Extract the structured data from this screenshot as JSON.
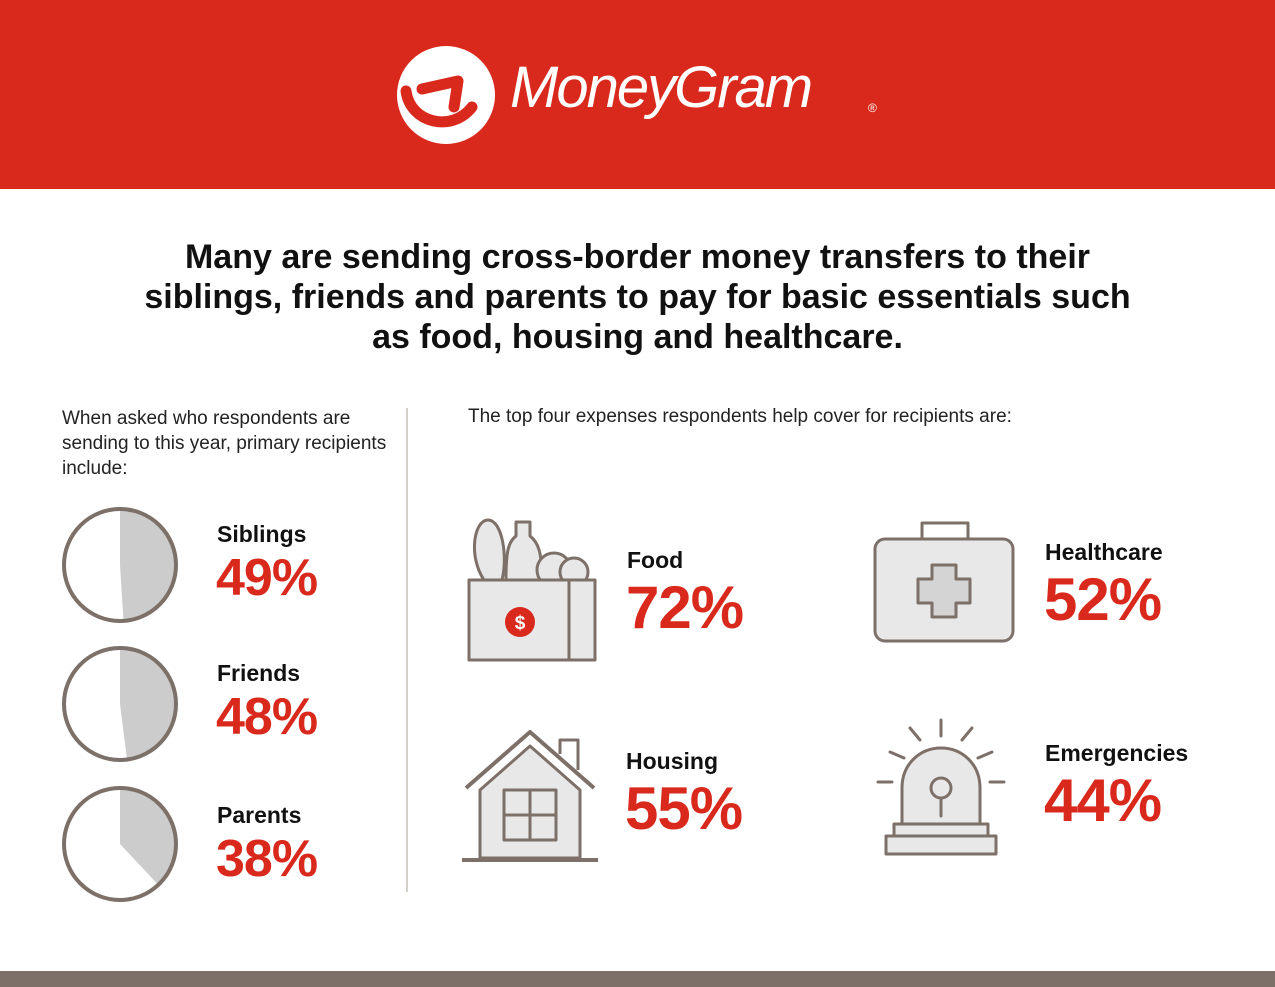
{
  "brand": {
    "name": "MoneyGram",
    "registered_mark": "®",
    "colors": {
      "red": "#d9291c",
      "gray": "#7d7069",
      "light_gray": "#cccccc"
    }
  },
  "headline": "Many are sending cross-border money transfers to their siblings, friends and parents to pay for basic essentials such as food, housing and healthcare.",
  "recipients": {
    "intro": "When asked who respondents are sending to this year, primary recipients include:",
    "items": [
      {
        "label": "Siblings",
        "percent_text": "49%",
        "value": 49
      },
      {
        "label": "Friends",
        "percent_text": "48%",
        "value": 48
      },
      {
        "label": "Parents",
        "percent_text": "38%",
        "value": 38
      }
    ]
  },
  "expenses": {
    "intro": "The top four expenses respondents help cover for recipients are:",
    "items": [
      {
        "label": "Food",
        "percent_text": "72%",
        "icon": "grocery-bag-icon"
      },
      {
        "label": "Healthcare",
        "percent_text": "52%",
        "icon": "first-aid-kit-icon"
      },
      {
        "label": "Housing",
        "percent_text": "55%",
        "icon": "house-icon"
      },
      {
        "label": "Emergencies",
        "percent_text": "44%",
        "icon": "alarm-siren-icon"
      }
    ],
    "food_icon_symbol": "$"
  }
}
